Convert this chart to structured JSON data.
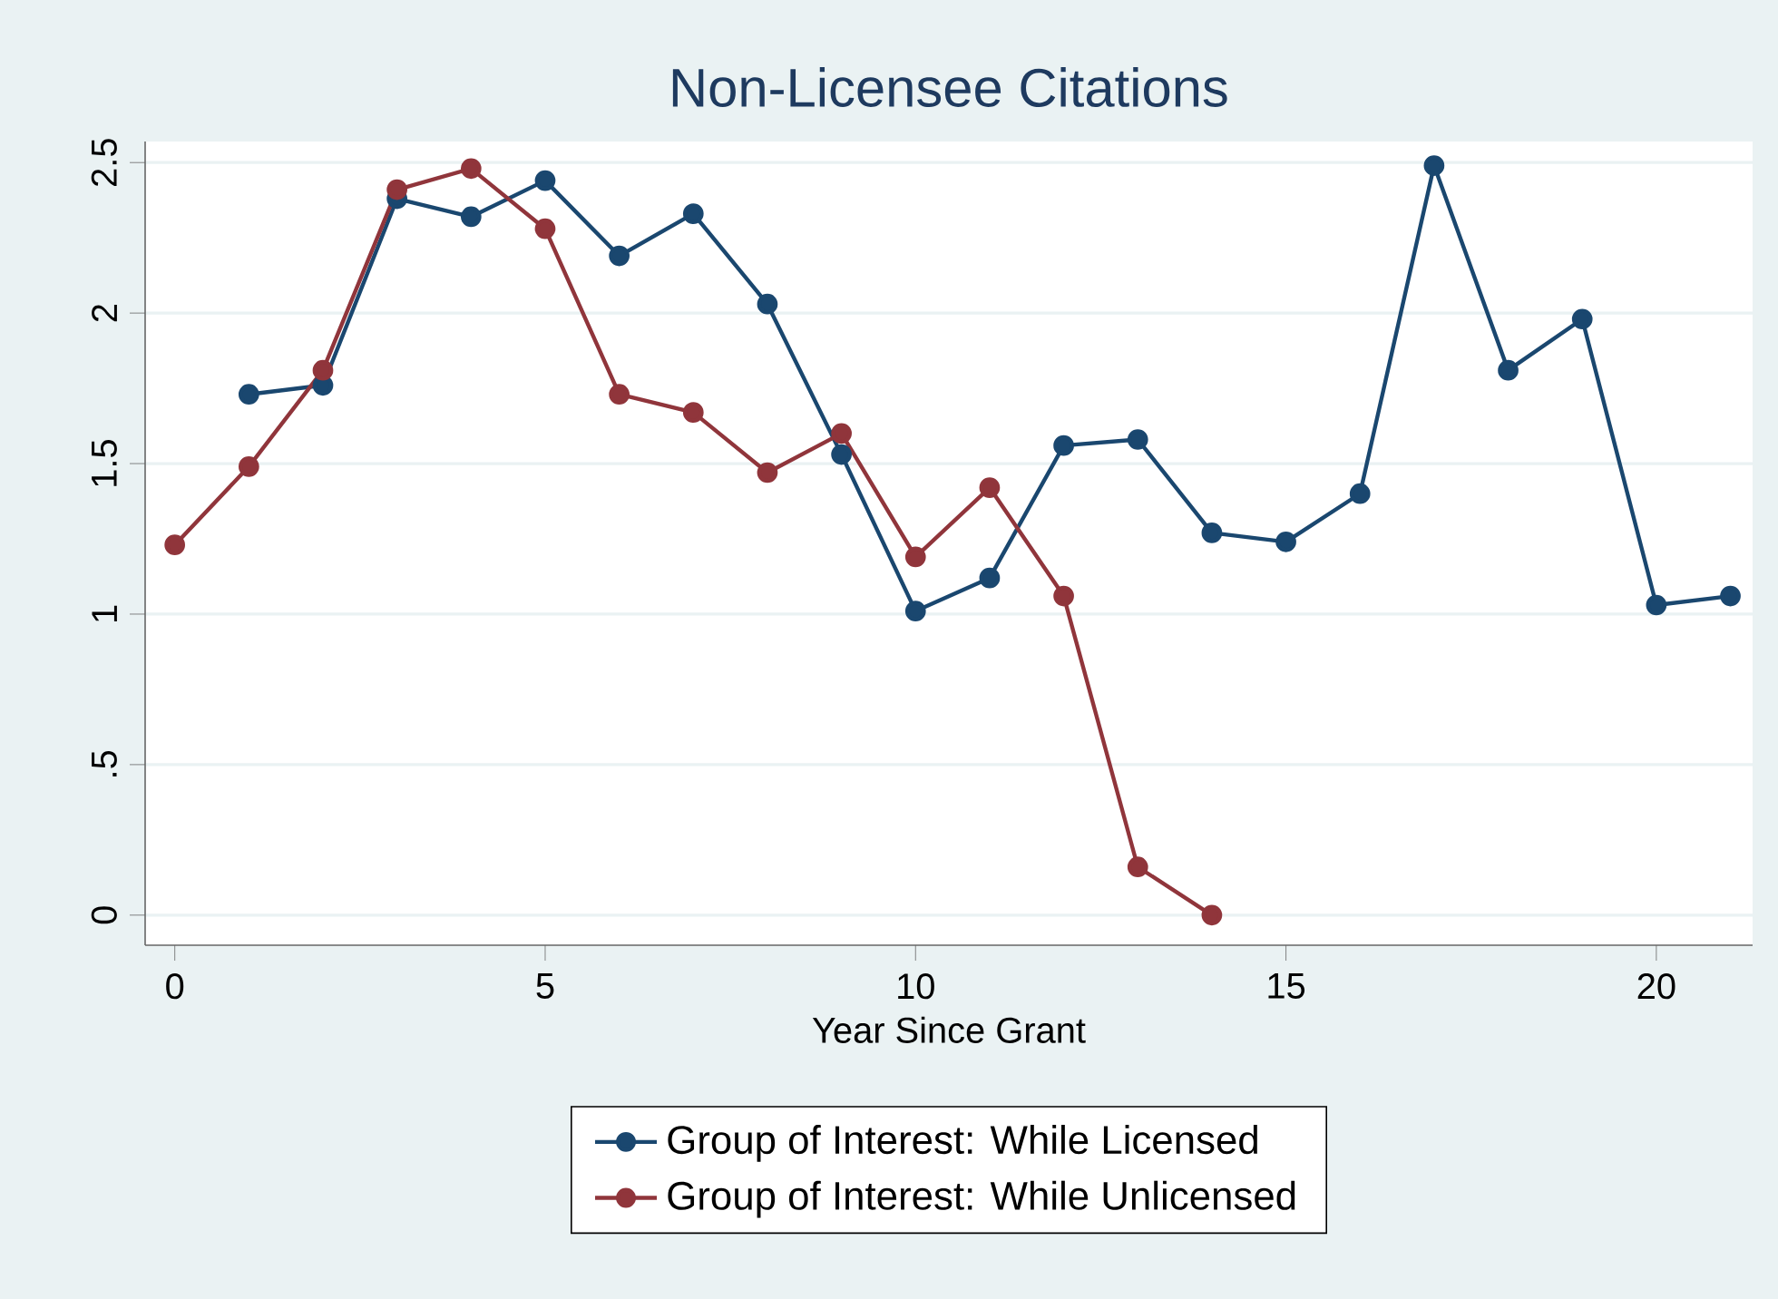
{
  "chart_data": {
    "type": "line",
    "title": "Non-Licensee Citations",
    "xlabel": "Year Since Grant",
    "xlim": [
      -0.4,
      21.3
    ],
    "ylim": [
      -0.1,
      2.57
    ],
    "xticks": [
      0,
      5,
      10,
      15,
      20
    ],
    "yticks": [
      0,
      {
        "value": 0.5,
        "label": ".5"
      },
      1,
      1.5,
      2,
      2.5
    ],
    "grid": "y",
    "legend": "bottom",
    "marker": "circle",
    "line_style": "solid",
    "series": [
      {
        "name": "Group of Interest: While Licensed",
        "color": "#1a476f",
        "x": [
          1,
          2,
          3,
          4,
          5,
          6,
          7,
          8,
          9,
          10,
          11,
          12,
          13,
          14,
          15,
          16,
          17,
          18,
          19,
          20,
          21
        ],
        "values": [
          1.73,
          1.76,
          2.38,
          2.32,
          2.44,
          2.19,
          2.33,
          2.03,
          1.53,
          1.01,
          1.12,
          1.56,
          1.58,
          1.27,
          1.24,
          1.4,
          2.49,
          1.81,
          1.98,
          1.03,
          1.06
        ]
      },
      {
        "name": "Group of Interest: While Unlicensed",
        "color": "#90353b",
        "x": [
          0,
          1,
          2,
          3,
          4,
          5,
          6,
          7,
          8,
          9,
          10,
          11,
          12,
          13,
          14
        ],
        "values": [
          1.23,
          1.49,
          1.81,
          2.41,
          2.48,
          2.28,
          1.73,
          1.67,
          1.47,
          1.6,
          1.19,
          1.42,
          1.06,
          0.16,
          0.0
        ]
      }
    ]
  }
}
